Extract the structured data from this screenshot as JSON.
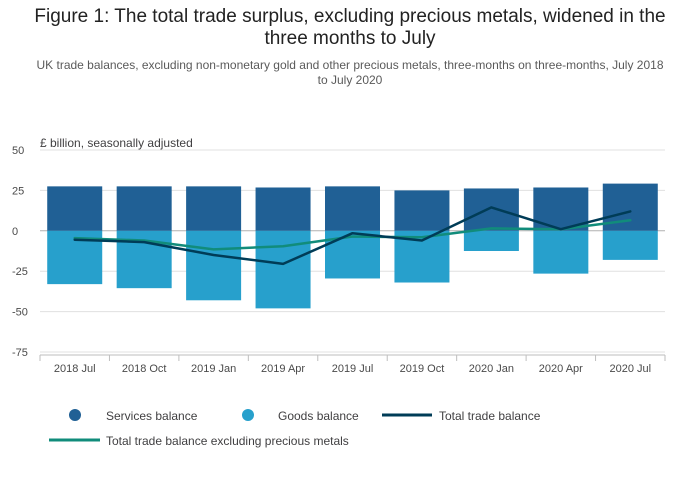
{
  "title": "Figure 1: The total trade surplus, excluding precious metals, widened in the three months to July",
  "subtitle": "UK trade balances, excluding non-monetary gold and other precious metals, three-months on three-months, July 2018 to July 2020",
  "colors": {
    "services": "#206095",
    "goods": "#27a0cc",
    "total": "#003c57",
    "total_ex": "#118c7b",
    "grid": "#e0e0e0",
    "axis": "#bebebe"
  },
  "chart_data": {
    "type": "bar",
    "stacked": true,
    "ylabel": "£ billion, seasonally adjusted",
    "xlabel": "",
    "ylim": [
      -75,
      50
    ],
    "yticks": [
      50,
      25,
      0,
      -25,
      -50,
      -75
    ],
    "ytick_labels": [
      "50",
      "25",
      "0",
      "-25",
      "-50",
      "-75"
    ],
    "grid": true,
    "legend_position": "bottom",
    "categories": [
      "2018 Jul",
      "2018 Oct",
      "2019 Jan",
      "2019 Apr",
      "2019 Jul",
      "2019 Oct",
      "2020 Jan",
      "2020 Apr",
      "2020 Jul"
    ],
    "series": [
      {
        "name": "Services balance",
        "kind": "bar",
        "color": "#206095",
        "values": [
          27.5,
          27.5,
          27.5,
          26.8,
          27.5,
          25.0,
          26.2,
          26.8,
          29.2
        ]
      },
      {
        "name": "Goods balance",
        "kind": "bar",
        "color": "#27a0cc",
        "values": [
          -33.0,
          -35.5,
          -43.0,
          -48.0,
          -29.5,
          -32.0,
          -12.5,
          -26.5,
          -18.0
        ]
      },
      {
        "name": "Total trade balance",
        "kind": "line",
        "color": "#003c57",
        "values": [
          -5.5,
          -7.0,
          -15.0,
          -20.5,
          -1.5,
          -6.0,
          14.5,
          1.0,
          12.0
        ]
      },
      {
        "name": "Total trade balance excluding precious metals",
        "kind": "line",
        "color": "#118c7b",
        "values": [
          -4.5,
          -6.0,
          -11.5,
          -9.5,
          -3.5,
          -4.0,
          1.5,
          1.0,
          6.5
        ]
      }
    ]
  }
}
